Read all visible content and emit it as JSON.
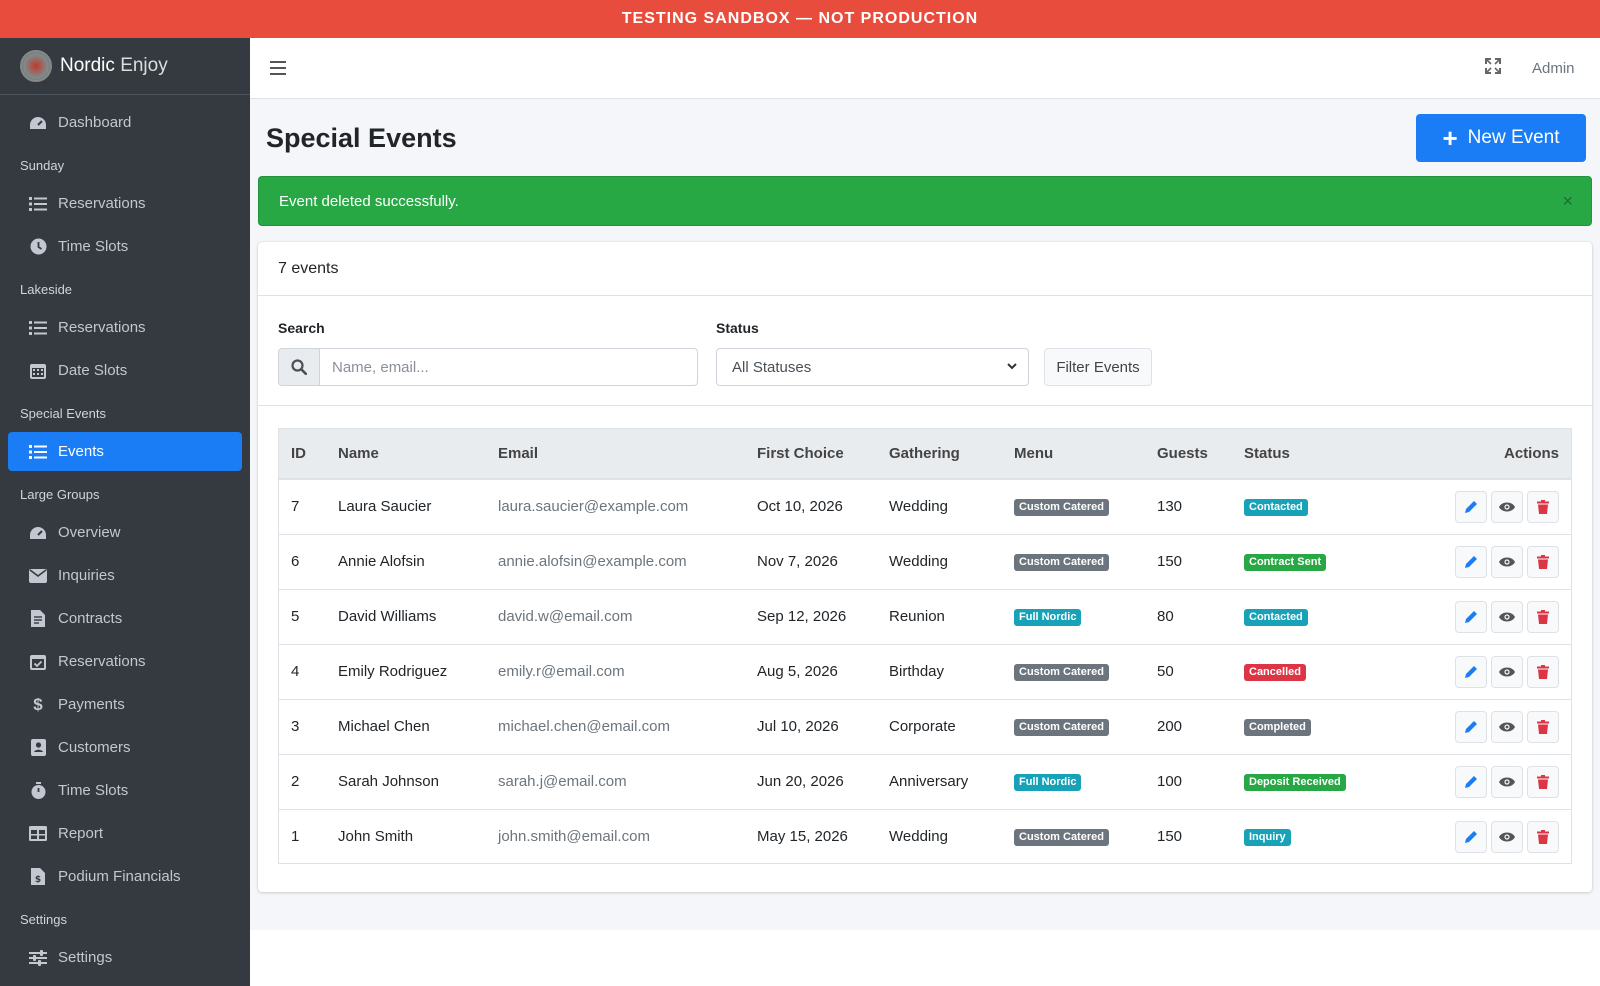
{
  "banner": {
    "text": "TESTING SANDBOX — NOT PRODUCTION"
  },
  "brand": {
    "name": "Nordic",
    "suffix": "Enjoy"
  },
  "sidebar": {
    "dashboard": "Dashboard",
    "h_sunday": "Sunday",
    "sun_res": "Reservations",
    "sun_slots": "Time Slots",
    "h_lakeside": "Lakeside",
    "lake_res": "Reservations",
    "lake_slots": "Date Slots",
    "h_special": "Special Events",
    "events": "Events",
    "h_large": "Large Groups",
    "overview": "Overview",
    "inquiries": "Inquiries",
    "contracts": "Contracts",
    "lg_res": "Reservations",
    "payments": "Payments",
    "customers": "Customers",
    "lg_slots": "Time Slots",
    "report": "Report",
    "podium": "Podium Financials",
    "h_settings": "Settings",
    "settings": "Settings"
  },
  "topbar": {
    "user": "Admin"
  },
  "page": {
    "title": "Special Events",
    "new_button": "New Event"
  },
  "alert": {
    "message": "Event deleted successfully.",
    "close": "×"
  },
  "card": {
    "count": "7 events"
  },
  "filters": {
    "search_label": "Search",
    "search_placeholder": "Name, email...",
    "status_label": "Status",
    "status_value": "All Statuses",
    "filter_button": "Filter Events"
  },
  "table": {
    "headers": {
      "id": "ID",
      "name": "Name",
      "email": "Email",
      "first": "First Choice",
      "gathering": "Gathering",
      "menu": "Menu",
      "guests": "Guests",
      "status": "Status",
      "actions": "Actions"
    },
    "rows": [
      {
        "id": "7",
        "name": "Laura Saucier",
        "email": "laura.saucier@example.com",
        "date": "Oct 10, 2026",
        "gathering": "Wedding",
        "menu": "Custom Catered",
        "guests": "130",
        "status": "Contacted"
      },
      {
        "id": "6",
        "name": "Annie Alofsin",
        "email": "annie.alofsin@example.com",
        "date": "Nov 7, 2026",
        "gathering": "Wedding",
        "menu": "Custom Catered",
        "guests": "150",
        "status": "Contract Sent"
      },
      {
        "id": "5",
        "name": "David Williams",
        "email": "david.w@email.com",
        "date": "Sep 12, 2026",
        "gathering": "Reunion",
        "menu": "Full Nordic",
        "guests": "80",
        "status": "Contacted"
      },
      {
        "id": "4",
        "name": "Emily Rodriguez",
        "email": "emily.r@email.com",
        "date": "Aug 5, 2026",
        "gathering": "Birthday",
        "menu": "Custom Catered",
        "guests": "50",
        "status": "Cancelled"
      },
      {
        "id": "3",
        "name": "Michael Chen",
        "email": "michael.chen@email.com",
        "date": "Jul 10, 2026",
        "gathering": "Corporate",
        "menu": "Custom Catered",
        "guests": "200",
        "status": "Completed"
      },
      {
        "id": "2",
        "name": "Sarah Johnson",
        "email": "sarah.j@email.com",
        "date": "Jun 20, 2026",
        "gathering": "Anniversary",
        "menu": "Full Nordic",
        "guests": "100",
        "status": "Deposit Received"
      },
      {
        "id": "1",
        "name": "John Smith",
        "email": "john.smith@email.com",
        "date": "May 15, 2026",
        "gathering": "Wedding",
        "menu": "Custom Catered",
        "guests": "150",
        "status": "Inquiry"
      }
    ]
  },
  "colors": {
    "banner": "#e74c3c",
    "primary": "#1a7df5",
    "success": "#28a745",
    "sidebar": "#343a40",
    "menu_custom": "#6c757d",
    "menu_full": "#17a2b8",
    "status_contacted": "#17a2b8",
    "status_contract": "#28a745",
    "status_cancelled": "#dc3545",
    "status_completed": "#6c757d",
    "status_deposit": "#28a745",
    "status_inquiry": "#17a2b8"
  }
}
